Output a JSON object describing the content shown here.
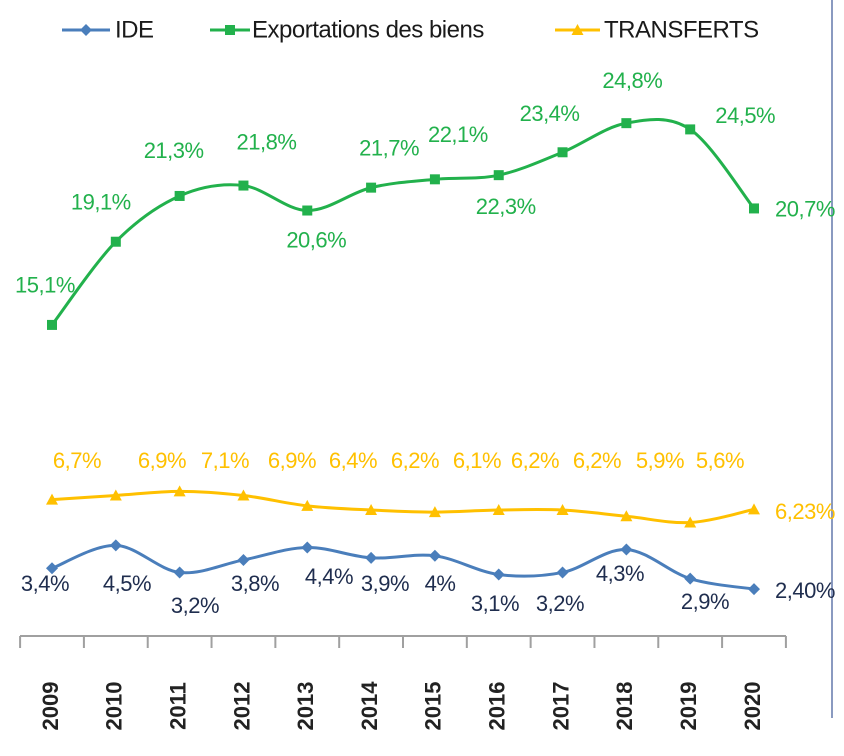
{
  "chart_data": {
    "type": "line",
    "categories": [
      "2009",
      "2010",
      "2011",
      "2012",
      "2013",
      "2014",
      "2015",
      "2016",
      "2017",
      "2018",
      "2019",
      "2020"
    ],
    "ylim": [
      0,
      30
    ],
    "legend": "top",
    "series": [
      {
        "name": "IDE",
        "color": "#4a7ebb",
        "label_color": "#1f2d4e",
        "marker": "diamond",
        "values": [
          3.4,
          4.5,
          3.2,
          3.8,
          4.4,
          3.9,
          4,
          3.1,
          3.2,
          4.3,
          2.9,
          2.4
        ],
        "value_labels": [
          "3,4%",
          "4,5%",
          "3,2%",
          "3,8%",
          "4,4%",
          "3,9%",
          "4%",
          "3,1%",
          "3,2%",
          "4,3%",
          "2,9%",
          "2,40%"
        ]
      },
      {
        "name": "Exportations des biens",
        "color": "#22b14c",
        "label_color": "#22b14c",
        "marker": "square",
        "values": [
          15.1,
          19.1,
          21.3,
          21.8,
          20.6,
          21.7,
          22.1,
          22.3,
          23.4,
          24.8,
          24.5,
          20.7
        ],
        "value_labels": [
          "15,1%",
          "19,1%",
          "21,3%",
          "21,8%",
          "20,6%",
          "21,7%",
          "22,1%",
          "22,3%",
          "23,4%",
          "24,8%",
          "24,5%",
          "20,7%"
        ]
      },
      {
        "name": "TRANSFERTS",
        "color": "#ffc000",
        "label_color": "#ffc000",
        "marker": "triangle",
        "values": [
          6.7,
          6.9,
          7.1,
          6.9,
          6.4,
          6.2,
          6.1,
          6.2,
          6.2,
          5.9,
          5.6,
          6.23
        ],
        "value_labels": [
          "6,7%",
          "6,9%",
          "7,1%",
          "6,9%",
          "6,4%",
          "6,2%",
          "6,1%",
          "6,2%",
          "6,2%",
          "5,9%",
          "5,6%",
          "6,23%"
        ]
      }
    ]
  }
}
